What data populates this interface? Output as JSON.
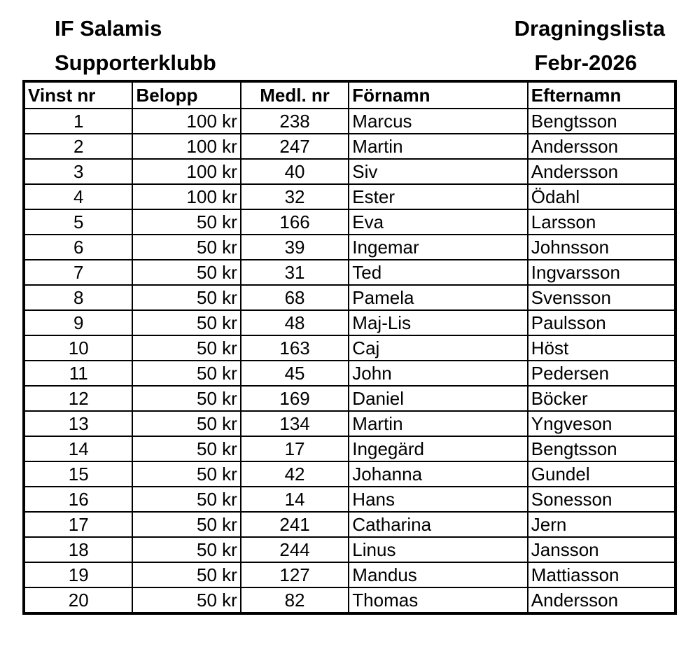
{
  "header": {
    "organization_line1": "IF Salamis",
    "organization_line2": "Supporterklubb",
    "document_title": "Dragningslista",
    "document_period": "Febr-2026"
  },
  "table": {
    "columns": [
      "Vinst nr",
      "Belopp",
      "Medl. nr",
      "Förnamn",
      "Efternamn"
    ],
    "rows": [
      [
        "1",
        "100 kr",
        "238",
        "Marcus",
        "Bengtsson"
      ],
      [
        "2",
        "100 kr",
        "247",
        "Martin",
        "Andersson"
      ],
      [
        "3",
        "100 kr",
        "40",
        "Siv",
        "Andersson"
      ],
      [
        "4",
        "100 kr",
        "32",
        "Ester",
        "Ödahl"
      ],
      [
        "5",
        "50 kr",
        "166",
        "Eva",
        "Larsson"
      ],
      [
        "6",
        "50 kr",
        "39",
        "Ingemar",
        "Johnsson"
      ],
      [
        "7",
        "50 kr",
        "31",
        "Ted",
        "Ingvarsson"
      ],
      [
        "8",
        "50 kr",
        "68",
        "Pamela",
        "Svensson"
      ],
      [
        "9",
        "50 kr",
        "48",
        "Maj-Lis",
        "Paulsson"
      ],
      [
        "10",
        "50 kr",
        "163",
        "Caj",
        "Höst"
      ],
      [
        "11",
        "50 kr",
        "45",
        "John",
        "Pedersen"
      ],
      [
        "12",
        "50 kr",
        "169",
        "Daniel",
        "Böcker"
      ],
      [
        "13",
        "50 kr",
        "134",
        "Martin",
        "Yngveson"
      ],
      [
        "14",
        "50 kr",
        "17",
        "Ingegärd",
        "Bengtsson"
      ],
      [
        "15",
        "50 kr",
        "42",
        "Johanna",
        "Gundel"
      ],
      [
        "16",
        "50 kr",
        "14",
        "Hans",
        "Sonesson"
      ],
      [
        "17",
        "50 kr",
        "241",
        "Catharina",
        "Jern"
      ],
      [
        "18",
        "50 kr",
        "244",
        "Linus",
        "Jansson"
      ],
      [
        "19",
        "50 kr",
        "127",
        "Mandus",
        "Mattiasson"
      ],
      [
        "20",
        "50 kr",
        "82",
        "Thomas",
        "Andersson"
      ]
    ]
  }
}
